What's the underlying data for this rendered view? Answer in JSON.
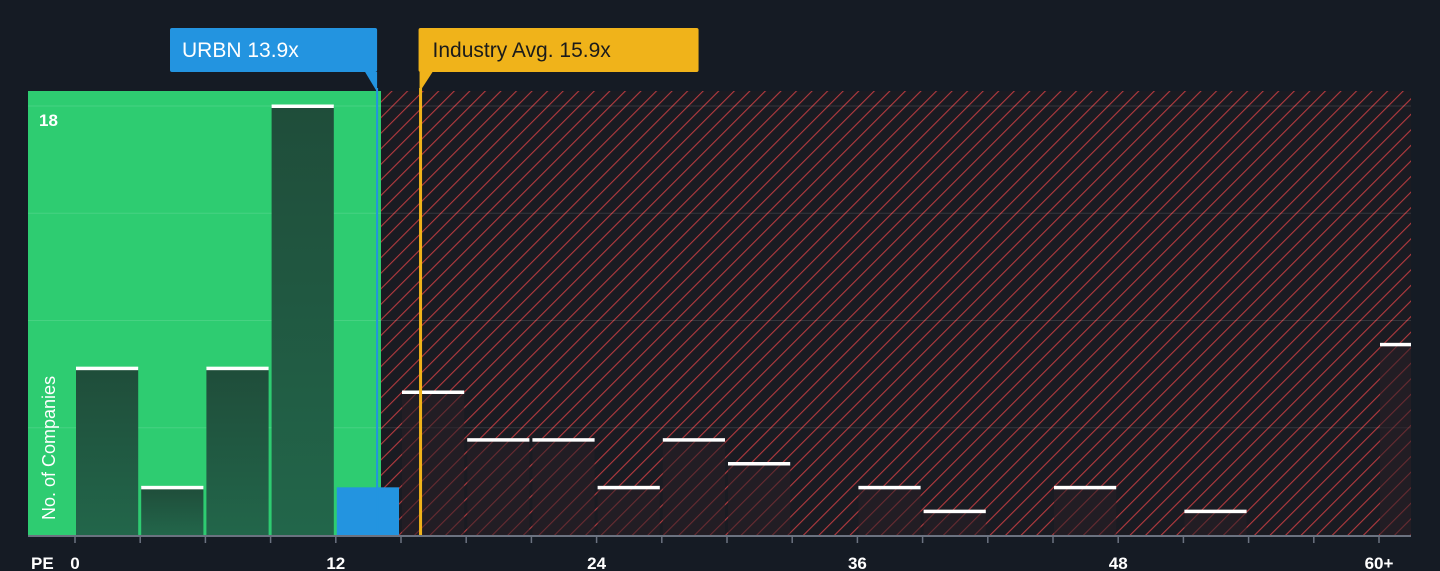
{
  "chart_data": {
    "type": "bar",
    "xlabel": "PE",
    "ylabel": "No. of Companies",
    "x_ticks": [
      "0",
      "12",
      "24",
      "36",
      "48",
      "60+"
    ],
    "y_max_label": "18",
    "ylim": [
      0,
      18
    ],
    "bins": [
      {
        "x_start": 0,
        "x_end": 3,
        "value": 7
      },
      {
        "x_start": 3,
        "x_end": 6,
        "value": 2
      },
      {
        "x_start": 6,
        "x_end": 9,
        "value": 7
      },
      {
        "x_start": 9,
        "x_end": 12,
        "value": 18
      },
      {
        "x_start": 12,
        "x_end": 15,
        "value": 2
      },
      {
        "x_start": 15,
        "x_end": 18,
        "value": 6
      },
      {
        "x_start": 18,
        "x_end": 21,
        "value": 4
      },
      {
        "x_start": 21,
        "x_end": 24,
        "value": 4
      },
      {
        "x_start": 24,
        "x_end": 27,
        "value": 2
      },
      {
        "x_start": 27,
        "x_end": 30,
        "value": 4
      },
      {
        "x_start": 30,
        "x_end": 33,
        "value": 3
      },
      {
        "x_start": 33,
        "x_end": 36,
        "value": 0
      },
      {
        "x_start": 36,
        "x_end": 39,
        "value": 2
      },
      {
        "x_start": 39,
        "x_end": 42,
        "value": 1
      },
      {
        "x_start": 42,
        "x_end": 45,
        "value": 0
      },
      {
        "x_start": 45,
        "x_end": 48,
        "value": 2
      },
      {
        "x_start": 48,
        "x_end": 51,
        "value": 0
      },
      {
        "x_start": 51,
        "x_end": 54,
        "value": 1
      },
      {
        "x_start": 54,
        "x_end": 57,
        "value": 0
      },
      {
        "x_start": 57,
        "x_end": 60,
        "value": 0
      },
      {
        "x_start": 60,
        "x_end": 61.6,
        "value": 8
      }
    ],
    "company": {
      "label": "URBN 13.9x",
      "value": 13.9
    },
    "industry_avg": {
      "label": "Industry Avg. 15.9x",
      "value": 15.9
    },
    "fair_threshold": 15,
    "colors": {
      "background": "#151b24",
      "fair_zone": "#2ecc71",
      "expensive_hatch": "#c0392b",
      "company": "#2394e0",
      "industry": "#f0b31a",
      "bar_dark": "#1d4a35",
      "bar_expensive": "#2a1f26",
      "bar_cap": "#ffffff"
    }
  }
}
